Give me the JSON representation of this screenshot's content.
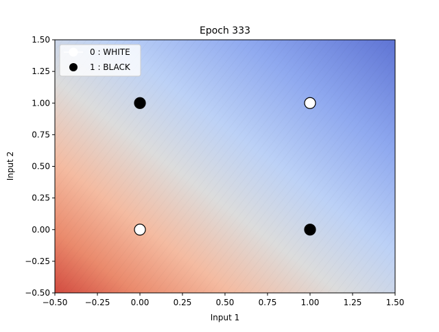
{
  "chart_data": {
    "type": "scatter",
    "title": "Epoch 333",
    "xlabel": "Input 1",
    "ylabel": "Input 2",
    "xlim": [
      -0.5,
      1.5
    ],
    "ylim": [
      -0.5,
      1.5
    ],
    "xticks": [
      "−0.50",
      "−0.25",
      "0.00",
      "0.25",
      "0.50",
      "0.75",
      "1.00",
      "1.25",
      "1.50"
    ],
    "yticks": [
      "−0.50",
      "−0.25",
      "0.00",
      "0.25",
      "0.50",
      "0.75",
      "1.00",
      "1.25",
      "1.50"
    ],
    "background": "decision-surface contour, coolwarm colormap (red at bottom-left, blue at top-right)",
    "colors": {
      "red_end": "#d24b40",
      "neutral": "#dcdcdc",
      "blue_end": "#5f74d4",
      "white_marker": "#ffffff",
      "black_marker": "#000000"
    },
    "legend": {
      "placement": "top-left",
      "entries": [
        {
          "label": "0 : WHITE",
          "color": "#ffffff"
        },
        {
          "label": "1 : BLACK",
          "color": "#000000"
        }
      ]
    },
    "series": [
      {
        "name": "0 : WHITE",
        "points": [
          {
            "x": 0,
            "y": 0
          },
          {
            "x": 1,
            "y": 1
          }
        ]
      },
      {
        "name": "1 : BLACK",
        "points": [
          {
            "x": 0,
            "y": 1
          },
          {
            "x": 1,
            "y": 0
          }
        ]
      }
    ]
  }
}
